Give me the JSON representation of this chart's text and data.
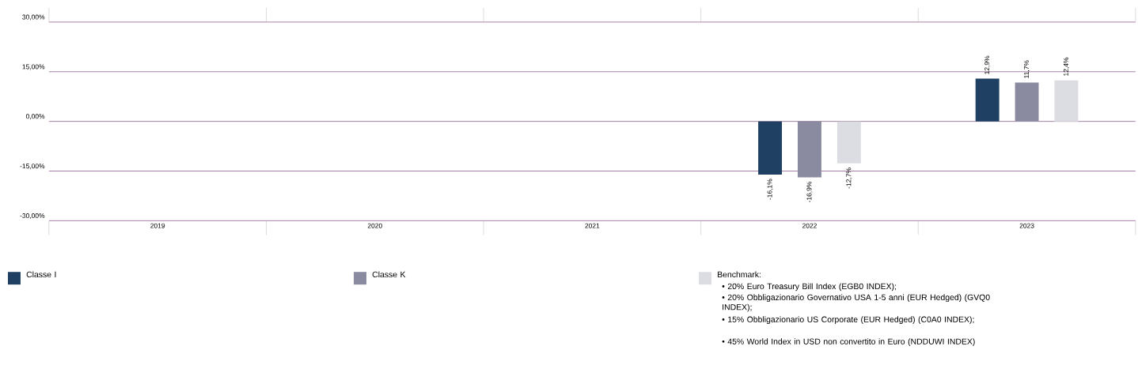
{
  "chart_data": {
    "type": "bar",
    "categories": [
      "2019",
      "2020",
      "2021",
      "2022",
      "2023"
    ],
    "series": [
      {
        "name": "Classe I",
        "color": "#1f3f63",
        "values": [
          null,
          null,
          null,
          -16.1,
          12.9
        ],
        "value_labels": [
          null,
          null,
          null,
          "-16,1%",
          "12,9%"
        ]
      },
      {
        "name": "Classe K",
        "color": "#8a8aa0",
        "values": [
          null,
          null,
          null,
          -16.9,
          11.7
        ],
        "value_labels": [
          null,
          null,
          null,
          "-16,9%",
          "11,7%"
        ]
      },
      {
        "name": "Benchmark:",
        "color": "#dcdde3",
        "values": [
          null,
          null,
          null,
          -12.7,
          12.4
        ],
        "value_labels": [
          null,
          null,
          null,
          "-12,7%",
          "12,4%"
        ]
      }
    ],
    "ylim": [
      -30,
      30
    ],
    "yticks": [
      {
        "value": -30,
        "label": "-30,00%"
      },
      {
        "value": -15,
        "label": "-15,00%"
      },
      {
        "value": 0,
        "label": "0,00%"
      },
      {
        "value": 15,
        "label": "15,00%"
      },
      {
        "value": 30,
        "label": "30,00%"
      }
    ],
    "grid": "y",
    "legend": "bottom",
    "annotations": [
      "• 20% Euro Treasury Bill Index (EGB0 INDEX);",
      "• 20% Obbligazionario Governativo USA 1-5 anni (EUR Hedged) (GVQ0 INDEX);",
      "• 15% Obbligazionario US Corporate (EUR Hedged) (C0A0 INDEX);",
      "• 45% World Index in USD non convertito in Euro (NDDUWI INDEX)"
    ]
  }
}
